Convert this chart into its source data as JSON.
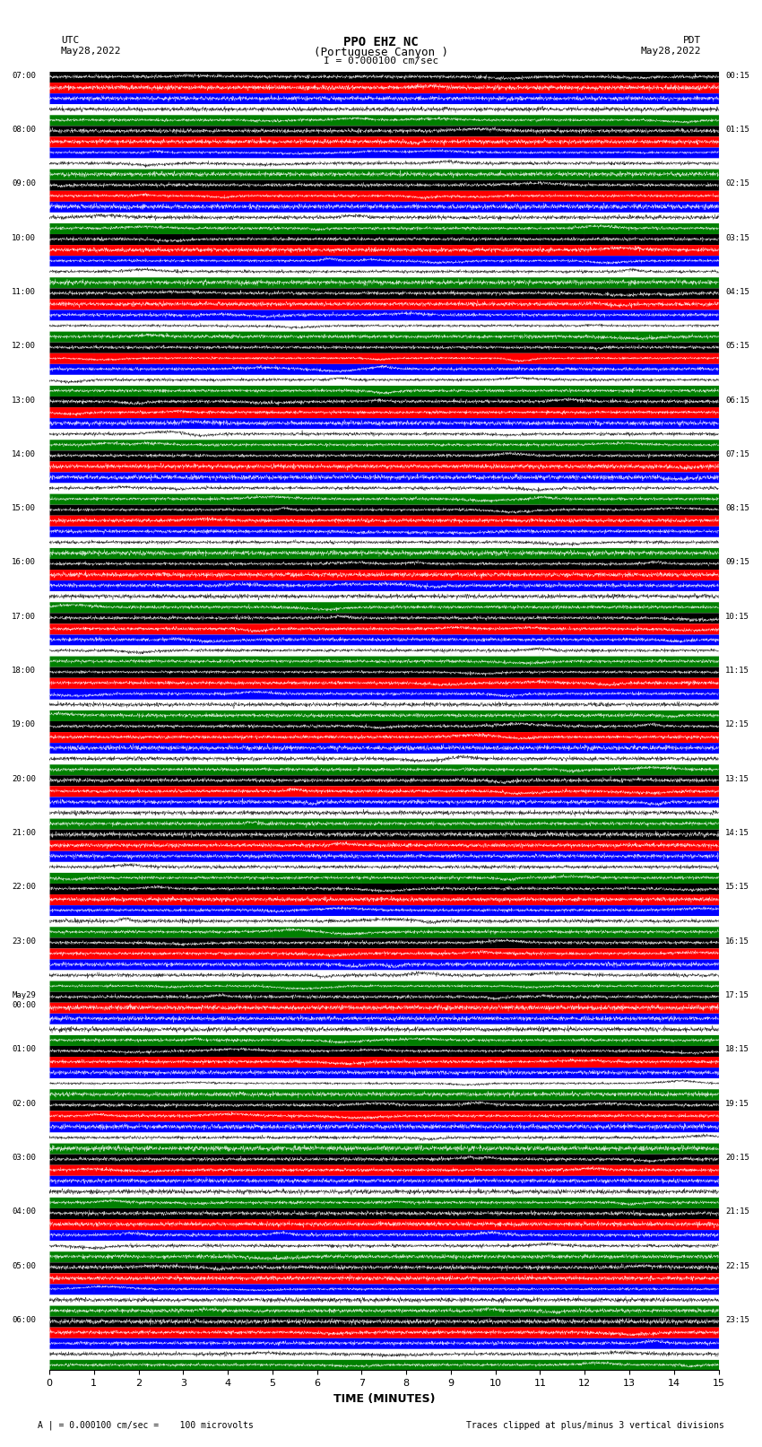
{
  "title_line1": "PPO EHZ NC",
  "title_line2": "(Portuguese Canyon )",
  "title_line3": "I = 0.000100 cm/sec",
  "utc_label": "UTC\nMay28,2022",
  "pdt_label": "PDT\nMay28,2022",
  "xlabel": "TIME (MINUTES)",
  "footnote_left": "A | = 0.000100 cm/sec =    100 microvolts",
  "footnote_right": "Traces clipped at plus/minus 3 vertical divisions",
  "xlim": [
    0,
    15
  ],
  "xticks": [
    0,
    1,
    2,
    3,
    4,
    5,
    6,
    7,
    8,
    9,
    10,
    11,
    12,
    13,
    14,
    15
  ],
  "utc_times_left": [
    "07:00",
    "08:00",
    "09:00",
    "10:00",
    "11:00",
    "12:00",
    "13:00",
    "14:00",
    "15:00",
    "16:00",
    "17:00",
    "18:00",
    "19:00",
    "20:00",
    "21:00",
    "22:00",
    "23:00",
    "May29\n00:00",
    "01:00",
    "02:00",
    "03:00",
    "04:00",
    "05:00",
    "06:00"
  ],
  "pdt_times_right": [
    "00:15",
    "01:15",
    "02:15",
    "03:15",
    "04:15",
    "05:15",
    "06:15",
    "07:15",
    "08:15",
    "09:15",
    "10:15",
    "11:15",
    "12:15",
    "13:15",
    "14:15",
    "15:15",
    "16:15",
    "17:15",
    "18:15",
    "19:15",
    "20:15",
    "21:15",
    "22:15",
    "23:15"
  ],
  "n_rows": 24,
  "colors_per_row": [
    "black",
    "red",
    "blue",
    "white",
    "green"
  ],
  "bg_color": "white",
  "plot_bg": "white",
  "band_colors": [
    "black",
    "red",
    "blue",
    "white",
    "green"
  ],
  "n_bands": 5
}
